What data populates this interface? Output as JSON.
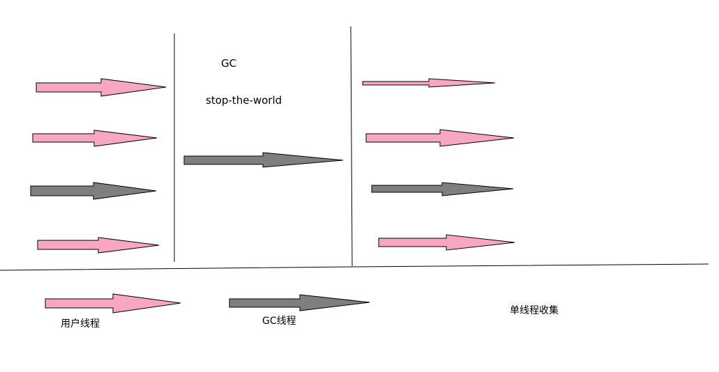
{
  "colors": {
    "user_thread": "#f7a8c0",
    "gc_thread": "#7f7f7f",
    "stroke": "#000000",
    "background": "#ffffff"
  },
  "labels": {
    "gc": "GC",
    "stop_the_world": "stop-the-world",
    "legend_user_thread": "用户线程",
    "legend_gc_thread": "GC线程",
    "caption": "单线程收集"
  }
}
